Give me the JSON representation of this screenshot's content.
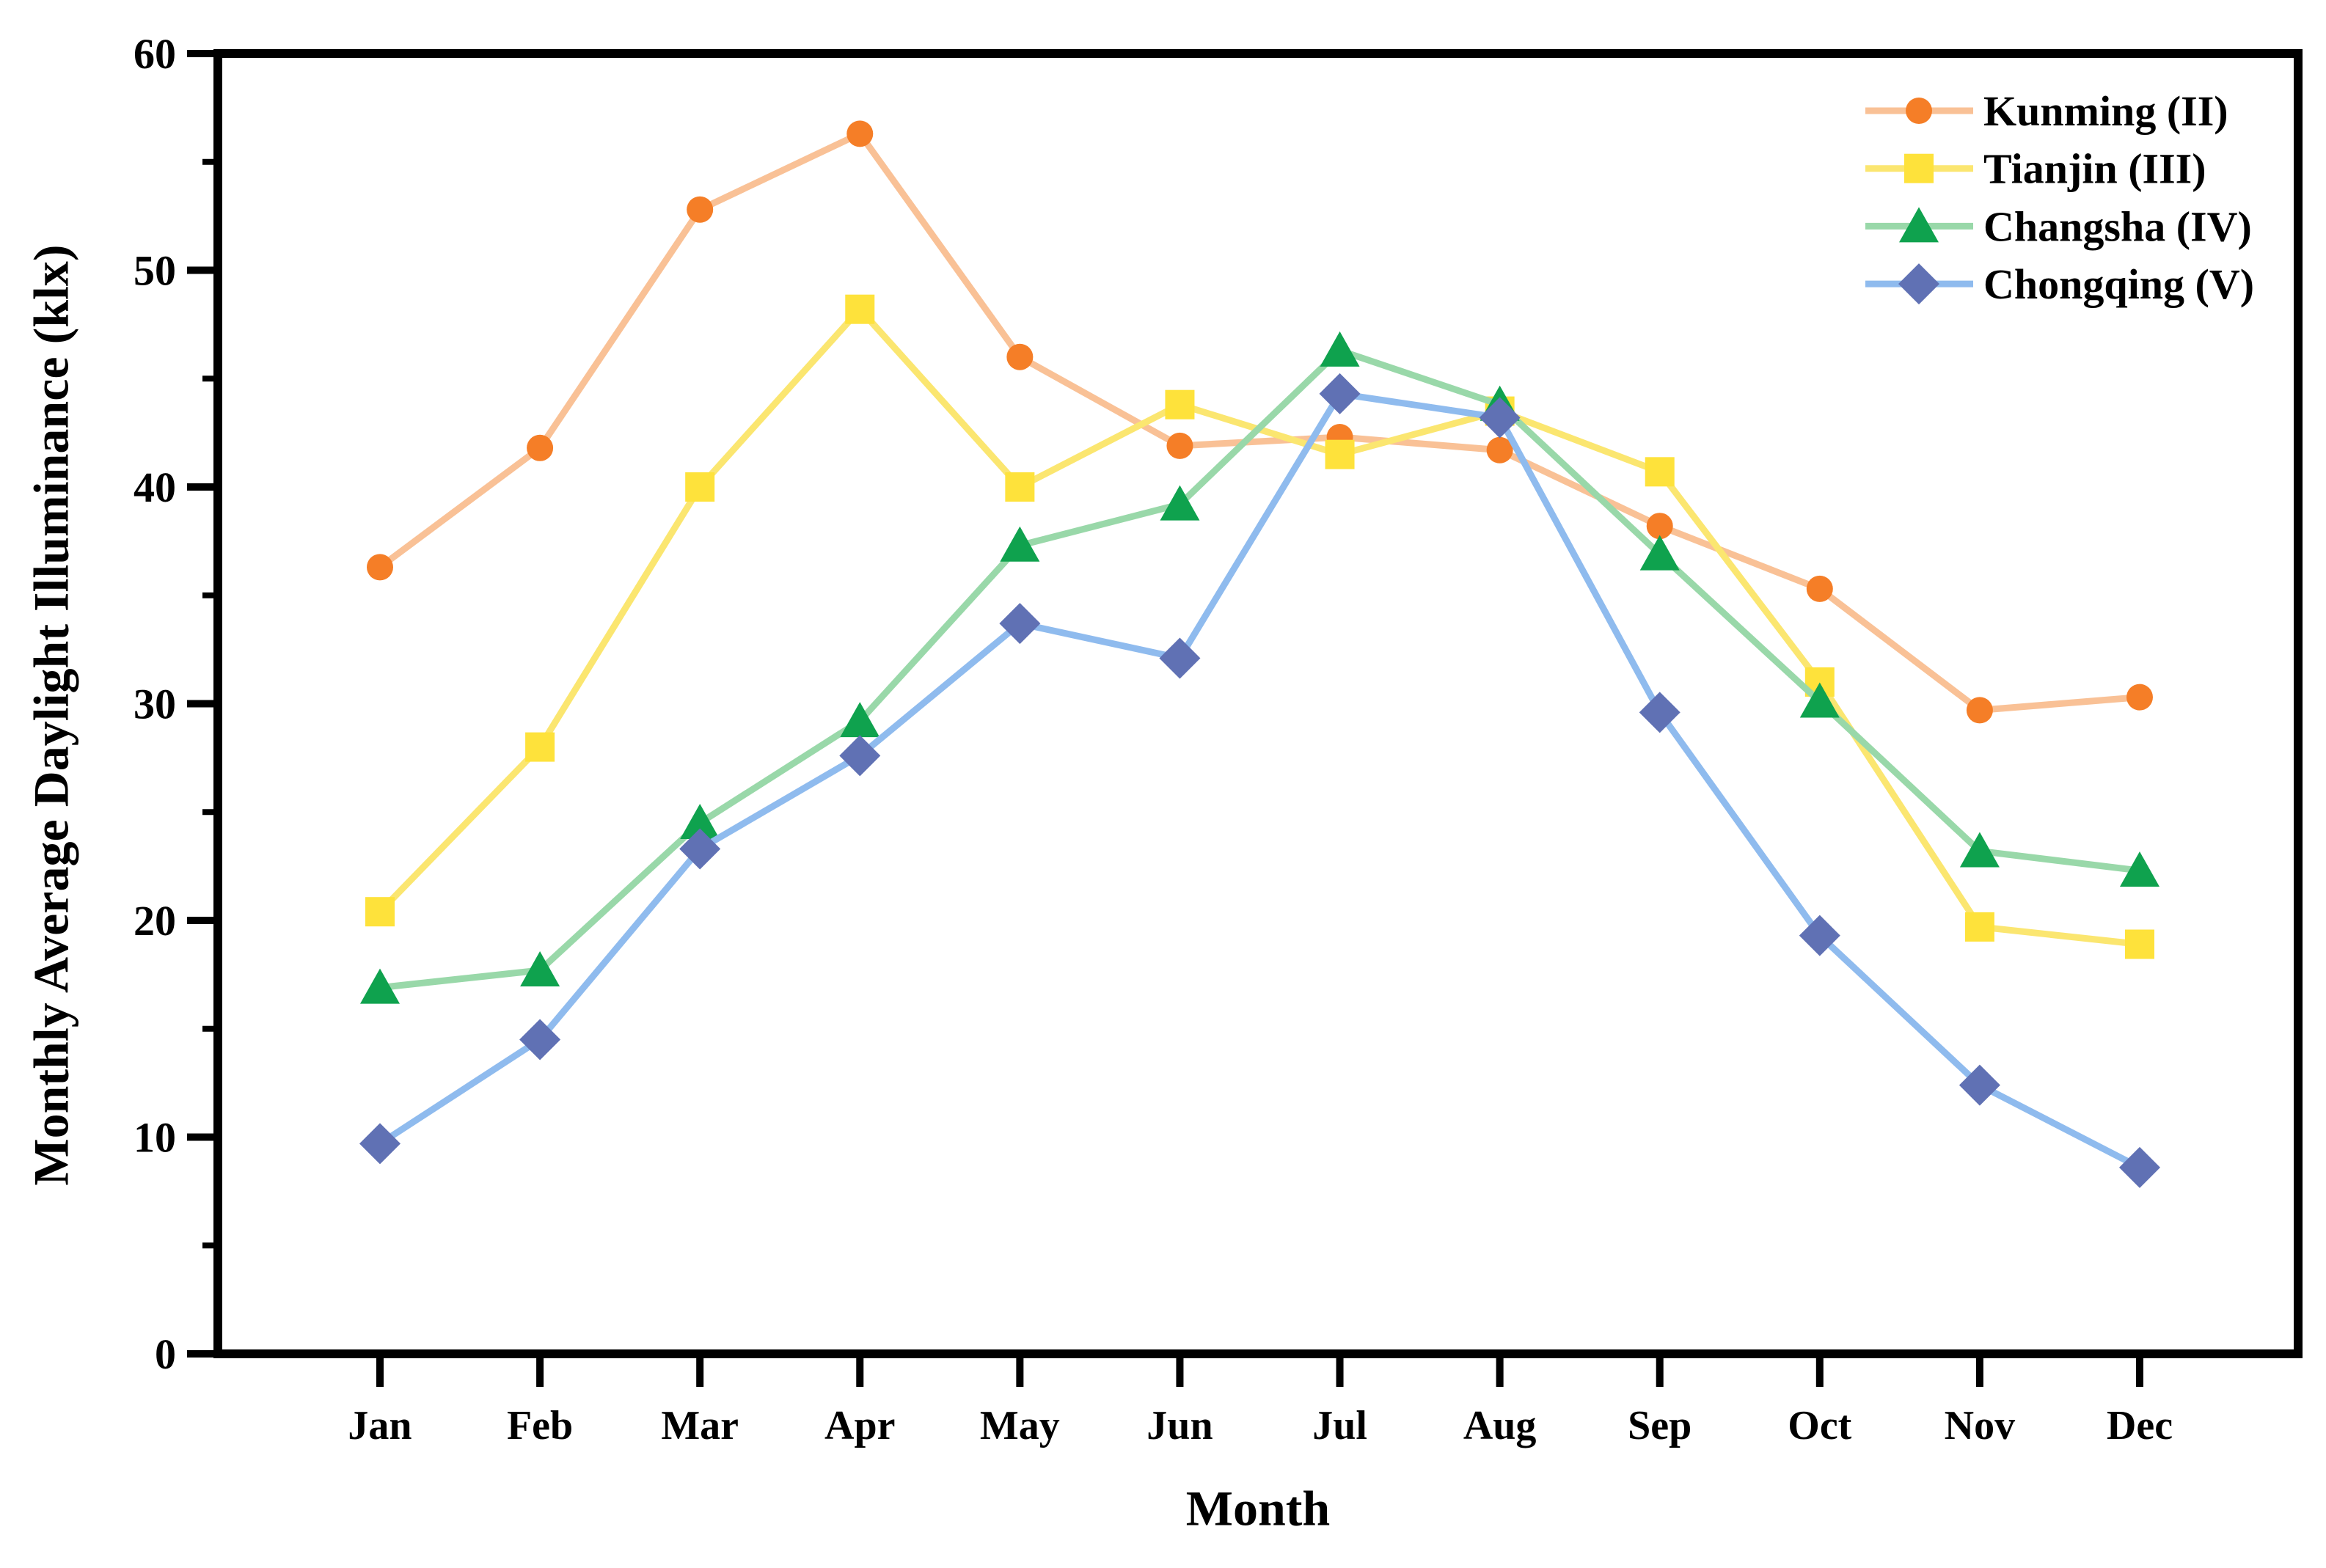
{
  "page": {
    "background": "#ffffff",
    "axis_color": "#000000",
    "text_color": "#000000"
  },
  "chart_data": {
    "type": "line",
    "title": "",
    "xlabel": "Month",
    "ylabel": "Monthly Average Daylight Illuminance (klx)",
    "categories": [
      "Jan",
      "Feb",
      "Mar",
      "Apr",
      "May",
      "Jun",
      "Jul",
      "Aug",
      "Sep",
      "Oct",
      "Nov",
      "Dec"
    ],
    "y_axis": {
      "min": 0,
      "max": 60,
      "major_ticks": [
        0,
        10,
        20,
        30,
        40,
        50,
        60
      ],
      "minor_tick_step": 5
    },
    "grid": false,
    "legend_position": "top-right",
    "series": [
      {
        "name": "Kunming (II)",
        "marker": "circle",
        "marker_color": "#f57e27",
        "line_color": "#f9c196",
        "values": [
          36.3,
          41.8,
          52.8,
          56.3,
          46.0,
          41.9,
          42.3,
          41.7,
          38.2,
          35.3,
          29.7,
          30.3
        ]
      },
      {
        "name": "Tianjin (III)",
        "marker": "square",
        "marker_color": "#fee23b",
        "line_color": "#fbe670",
        "values": [
          20.4,
          28.0,
          40.0,
          48.2,
          40.0,
          43.8,
          41.5,
          43.5,
          40.7,
          31.0,
          19.7,
          18.9
        ]
      },
      {
        "name": "Changsha (IV)",
        "marker": "triangle",
        "marker_color": "#0fa24e",
        "line_color": "#99d8a9",
        "values": [
          16.9,
          17.7,
          24.5,
          29.2,
          37.3,
          39.2,
          46.3,
          43.8,
          36.9,
          30.1,
          23.2,
          22.3
        ]
      },
      {
        "name": "Chongqing (V)",
        "marker": "diamond",
        "marker_color": "#6071b4",
        "line_color": "#8fbbee",
        "values": [
          9.7,
          14.5,
          23.3,
          27.6,
          33.7,
          32.1,
          44.3,
          43.2,
          29.6,
          19.3,
          12.4,
          8.6
        ]
      }
    ]
  }
}
